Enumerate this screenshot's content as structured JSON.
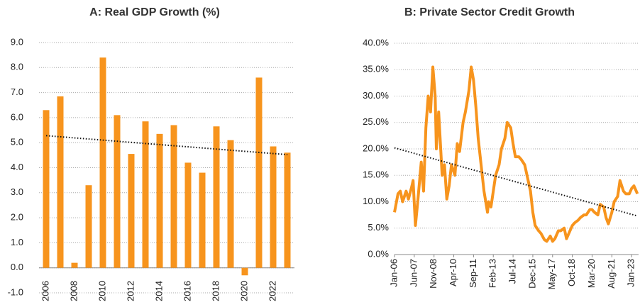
{
  "chart_data": [
    {
      "type": "bar",
      "title": "A: Real GDP Growth (%)",
      "categories": [
        "2006",
        null,
        "2008",
        null,
        "2010",
        null,
        "2012",
        null,
        "2014",
        null,
        "2016",
        null,
        "2018",
        null,
        "2020",
        null,
        "2022",
        null
      ],
      "values": [
        6.3,
        6.85,
        0.2,
        3.3,
        8.4,
        6.1,
        4.55,
        5.85,
        5.35,
        5.7,
        4.2,
        3.8,
        5.65,
        5.1,
        -0.3,
        7.6,
        4.85,
        4.6
      ],
      "color": "#f7941d",
      "trend": [
        5.28,
        4.52
      ],
      "ylim": [
        -1,
        9
      ],
      "yticks": [
        {
          "value": -1,
          "label": "-1.0"
        },
        {
          "value": 0,
          "label": "0.0"
        },
        {
          "value": 1,
          "label": "1.0"
        },
        {
          "value": 2,
          "label": "2.0"
        },
        {
          "value": 3,
          "label": "3.0"
        },
        {
          "value": 4,
          "label": "4.0"
        },
        {
          "value": 5,
          "label": "5.0"
        },
        {
          "value": 6,
          "label": "6.0"
        },
        {
          "value": 7,
          "label": "7.0"
        },
        {
          "value": 8,
          "label": "8.0"
        },
        {
          "value": 9,
          "label": "9.0"
        }
      ],
      "grid": true
    },
    {
      "type": "line",
      "title": "B: Private Sector Credit Growth",
      "x": [
        0,
        3,
        5,
        7,
        10,
        12,
        15,
        16,
        18,
        20,
        23,
        25,
        27,
        29,
        31,
        33,
        35,
        36,
        38,
        41,
        43,
        45,
        47,
        49,
        52,
        54,
        56,
        59,
        61,
        64,
        66,
        68,
        70,
        72,
        75,
        77,
        80,
        81,
        83,
        85,
        87,
        90,
        92,
        95,
        97,
        100,
        102,
        104,
        107,
        109,
        112,
        114,
        117,
        119,
        121,
        124,
        126,
        129,
        131,
        134,
        136,
        138,
        141,
        143,
        146,
        148,
        151,
        153,
        155,
        158,
        160,
        163,
        165,
        168,
        170,
        172,
        175,
        177,
        180,
        182,
        184,
        187,
        189,
        192,
        194,
        197,
        199,
        202,
        204,
        206,
        209
      ],
      "values": [
        8,
        11.5,
        12,
        10,
        12,
        10.5,
        13,
        14,
        5.5,
        10,
        17.5,
        12,
        24,
        30,
        27,
        35.5,
        30,
        20,
        27,
        15,
        17,
        10.5,
        13,
        17,
        15,
        21,
        19.5,
        25,
        27,
        31,
        35.5,
        33,
        28,
        22,
        16,
        12,
        8,
        10,
        9,
        12,
        15,
        17,
        20,
        22,
        25,
        24,
        21,
        18.5,
        18.5,
        18,
        17,
        15,
        12,
        8,
        5.5,
        4.5,
        4,
        2.8,
        2.5,
        3.5,
        2.5,
        3,
        4.5,
        4.5,
        5,
        3,
        4.5,
        5.5,
        6,
        6.5,
        7,
        7.5,
        7.5,
        8.5,
        8.5,
        8,
        7.5,
        9.5,
        9,
        7,
        5.8,
        8,
        10,
        11,
        14,
        12,
        11.5,
        11.5,
        12.5,
        13,
        11.5
      ],
      "color": "#f7941d",
      "trend": [
        20.2,
        7.3
      ],
      "xlim": [
        0,
        210
      ],
      "xticks": [
        {
          "value": 0,
          "label": "Jan-06"
        },
        {
          "value": 17,
          "label": "Jun-07"
        },
        {
          "value": 34,
          "label": "Nov-08"
        },
        {
          "value": 51,
          "label": "Apr-10"
        },
        {
          "value": 68,
          "label": "Sep-11"
        },
        {
          "value": 85,
          "label": "Feb-13"
        },
        {
          "value": 102,
          "label": "Jul-14"
        },
        {
          "value": 119,
          "label": "Dec-15"
        },
        {
          "value": 136,
          "label": "May-17"
        },
        {
          "value": 153,
          "label": "Oct-18"
        },
        {
          "value": 170,
          "label": "Mar-20"
        },
        {
          "value": 187,
          "label": "Aug-21"
        },
        {
          "value": 204,
          "label": "Jan-23"
        }
      ],
      "ylim": [
        0,
        40
      ],
      "yticks": [
        {
          "value": 0,
          "label": "0.0%"
        },
        {
          "value": 5,
          "label": "5.0%"
        },
        {
          "value": 10,
          "label": "10.0%"
        },
        {
          "value": 15,
          "label": "15.0%"
        },
        {
          "value": 20,
          "label": "20.0%"
        },
        {
          "value": 25,
          "label": "25.0%"
        },
        {
          "value": 30,
          "label": "30.0%"
        },
        {
          "value": 35,
          "label": "35.0%"
        },
        {
          "value": 40,
          "label": "40.0%"
        }
      ],
      "grid": true
    }
  ]
}
